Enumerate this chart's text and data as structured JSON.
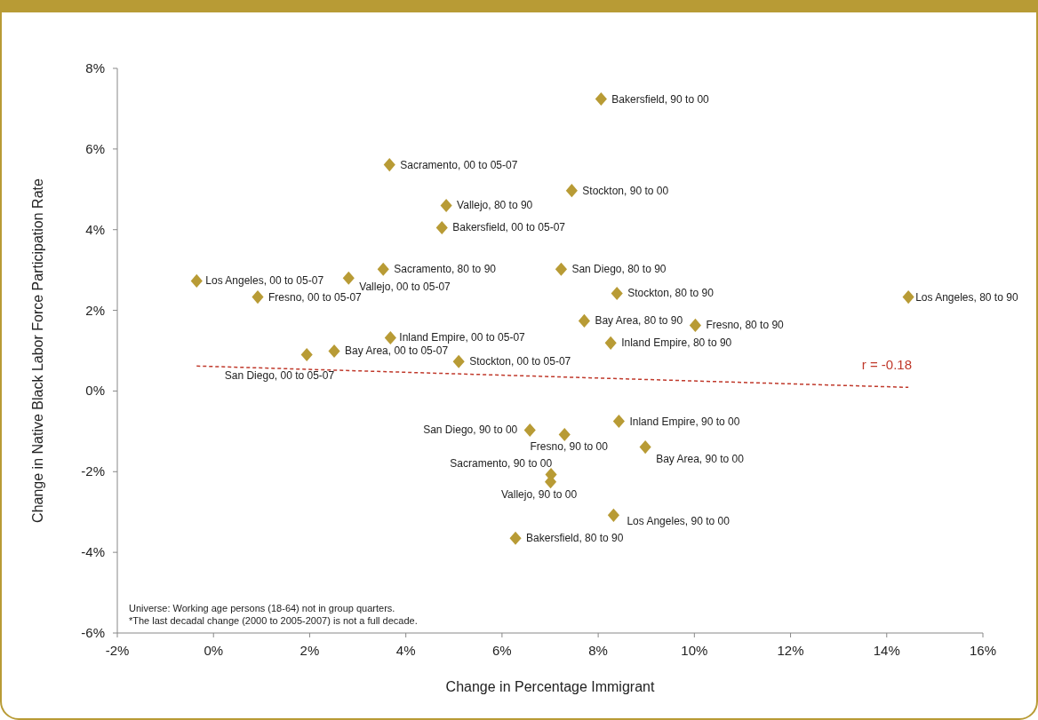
{
  "chart_data": {
    "type": "scatter",
    "xlabel": "Change in Percentage Immigrant",
    "ylabel": "Change in Native Black Labor Force Participation Rate",
    "xlim": [
      -2,
      16
    ],
    "xticks": [
      {
        "value": -2,
        "label": "-2%"
      },
      {
        "value": 0,
        "label": "0%"
      },
      {
        "value": 2,
        "label": "2%"
      },
      {
        "value": 4,
        "label": "4%"
      },
      {
        "value": 6,
        "label": "6%"
      },
      {
        "value": 8,
        "label": "8%"
      },
      {
        "value": 10,
        "label": "10%"
      },
      {
        "value": 12,
        "label": "12%"
      },
      {
        "value": 14,
        "label": "14%"
      },
      {
        "value": 16,
        "label": "16%"
      }
    ],
    "ylim": [
      -6,
      8
    ],
    "yticks": [
      {
        "value": -6,
        "label": "-6%"
      },
      {
        "value": -4,
        "label": "-4%"
      },
      {
        "value": -2,
        "label": "-2%"
      },
      {
        "value": 0,
        "label": "0%"
      },
      {
        "value": 2,
        "label": "2%"
      },
      {
        "value": 4,
        "label": "4%"
      },
      {
        "value": 6,
        "label": "6%"
      },
      {
        "value": 8,
        "label": "8%"
      }
    ],
    "series": [
      {
        "type": "scatter",
        "color": "#b89b35",
        "marker": "diamond",
        "x": [
          8.06,
          3.66,
          7.45,
          4.84,
          4.75,
          3.53,
          7.23,
          -0.35,
          2.81,
          8.39,
          14.45,
          0.92,
          7.71,
          10.02,
          3.68,
          8.26,
          2.51,
          1.94,
          5.1,
          8.43,
          6.58,
          7.3,
          8.98,
          7.02,
          7.01,
          8.32,
          6.28
        ],
        "values": [
          7.24,
          5.61,
          4.97,
          4.6,
          4.05,
          3.02,
          3.02,
          2.73,
          2.8,
          2.42,
          2.33,
          2.33,
          1.74,
          1.63,
          1.32,
          1.19,
          0.99,
          0.9,
          0.73,
          -0.75,
          -0.97,
          -1.08,
          -1.39,
          -2.07,
          -2.25,
          -3.08,
          -3.65
        ],
        "value_labels": [
          "Bakersfield, 90 to 00",
          "Sacramento, 00 to 05-07",
          "Stockton, 90 to 00",
          "Vallejo, 80 to 90",
          "Bakersfield, 00 to 05-07",
          "Sacramento, 80 to 90",
          "San Diego, 80 to 90",
          "Los Angeles, 00 to 05-07",
          "Vallejo, 00 to 05-07",
          "Stockton, 80 to 90",
          "Los Angeles, 80 to 90",
          "Fresno, 00 to 05-07",
          "Bay Area, 80 to 90",
          "Fresno, 80 to 90",
          "Inland Empire, 00 to 05-07",
          "Inland Empire, 80 to 90",
          "Bay Area, 00 to 05-07",
          "San Diego, 00 to 05-07",
          "Stockton, 00 to 05-07",
          "Inland Empire, 90 to 00",
          "San Diego, 90 to 00",
          "Fresno, 90 to 00",
          "Bay Area, 90 to 00",
          "Sacramento, 90 to 00",
          "Vallejo, 90 to 00",
          "Los Angeles, 90 to 00",
          "Bakersfield, 80 to 90"
        ]
      },
      {
        "type": "line",
        "color": "#c0392b",
        "line_style": "dashed",
        "marker": "none",
        "x": [
          -0.35,
          14.45
        ],
        "values": [
          0.62,
          0.09
        ]
      }
    ],
    "annotations": [
      "r = -0.18",
      "Universe: Working age persons (18-64) not in group quarters.",
      "*The last decadal change (2000 to 2005-2007) is not a full decade."
    ]
  }
}
